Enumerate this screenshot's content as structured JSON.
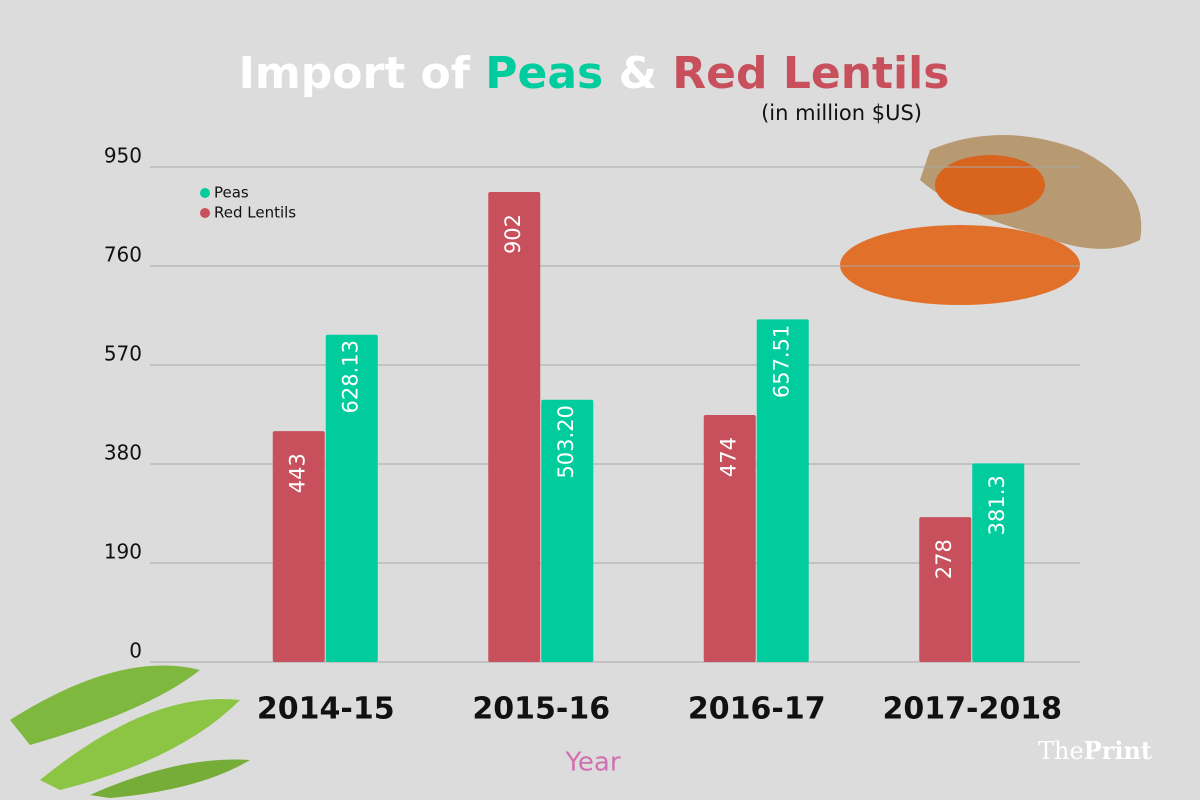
{
  "chart_data": {
    "type": "bar",
    "title_parts": [
      "Import of",
      "&"
    ],
    "subtitle": "(in million $US)",
    "x_label": "Year",
    "categories": [
      "2014-15",
      "2015-16",
      "2016-17",
      "2017-2018"
    ],
    "series": [
      {
        "name": "Peas",
        "color": "#00cc9e",
        "values": [
          628.13,
          503.2,
          657.51,
          381.3
        ],
        "value_labels": [
          "628.13",
          "503.20",
          "657.51",
          "381.3"
        ]
      },
      {
        "name": "Red Lentils",
        "color": "#c8505c",
        "values": [
          443,
          902,
          474,
          278
        ]
      }
    ],
    "ylim": [
      0,
      950
    ],
    "yticks": [
      0,
      190,
      380,
      570,
      760,
      950
    ],
    "grid": true,
    "legend": "top-left",
    "watermark": [
      "The",
      "Print"
    ]
  }
}
